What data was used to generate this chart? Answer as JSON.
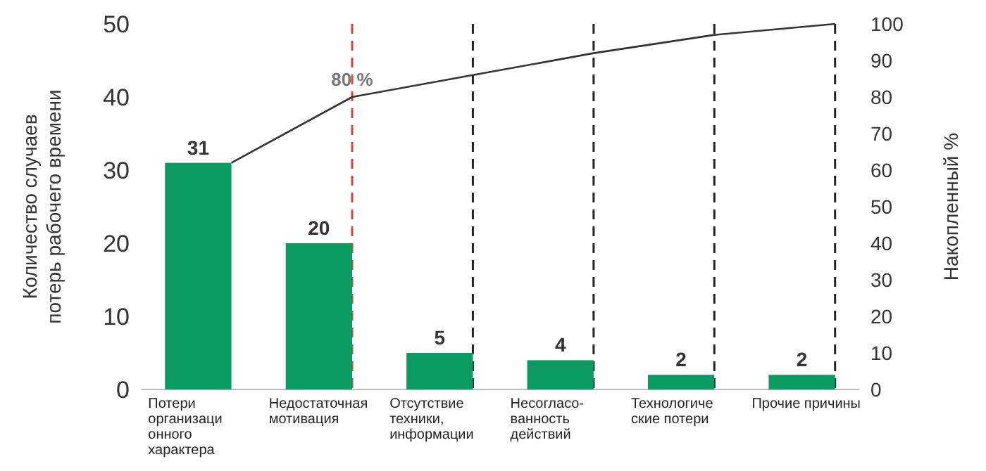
{
  "chart_data": {
    "type": "bar",
    "categories": [
      "Потери\nорганизаци\nонного\nхарактера",
      "Недостаточная\nмотивация",
      "Отсутствие\nтехники,\nинформации",
      "Несогласо-\nванность\nдействий",
      "Технологиче\nские потери",
      "Прочие причины"
    ],
    "series": [
      {
        "color": "#0b9a5f",
        "values": [
          31,
          20,
          5,
          4,
          2,
          2
        ],
        "value_labels": [
          "31",
          "20",
          "5",
          "4",
          "2",
          "2"
        ]
      },
      {
        "type": "line",
        "axis": "y2",
        "color": "#333333",
        "x": [
          "Потери\nорганизаци\nонного\nхарактера",
          "Недостаточная\nмотивация",
          "Отсутствие\nтехники,\nинформации",
          "Несогласо-\nванность\nдействий",
          "Технологиче\nские потери",
          "Прочие причины"
        ],
        "values": [
          62,
          80,
          86,
          92,
          97,
          100
        ]
      }
    ],
    "ylabel": "Количество случаев\nпотерь рабочего времени",
    "y2label": "Накопленный %",
    "ylim": [
      0,
      50
    ],
    "yticks": [
      0,
      10,
      20,
      30,
      40,
      50
    ],
    "y2lim": [
      0,
      100
    ],
    "y2ticks": [
      0,
      10,
      20,
      30,
      40,
      50,
      60,
      70,
      80,
      90,
      100
    ],
    "ref_lines": [
      {
        "axis": "x",
        "value": "Недостаточная\nмотивация",
        "color": "#d9423a",
        "line_style": "dashed"
      },
      {
        "axis": "x",
        "value": "Отсутствие\nтехники,\nинформации",
        "color": "#222222",
        "line_style": "dashed"
      },
      {
        "axis": "x",
        "value": "Несогласо-\nванность\nдействий",
        "color": "#222222",
        "line_style": "dashed"
      },
      {
        "axis": "x",
        "value": "Технологиче\nские потери",
        "color": "#222222",
        "line_style": "dashed"
      },
      {
        "axis": "x",
        "value": "Прочие причины",
        "color": "#222222",
        "line_style": "dashed"
      }
    ],
    "annotations": [
      "80 %"
    ]
  }
}
